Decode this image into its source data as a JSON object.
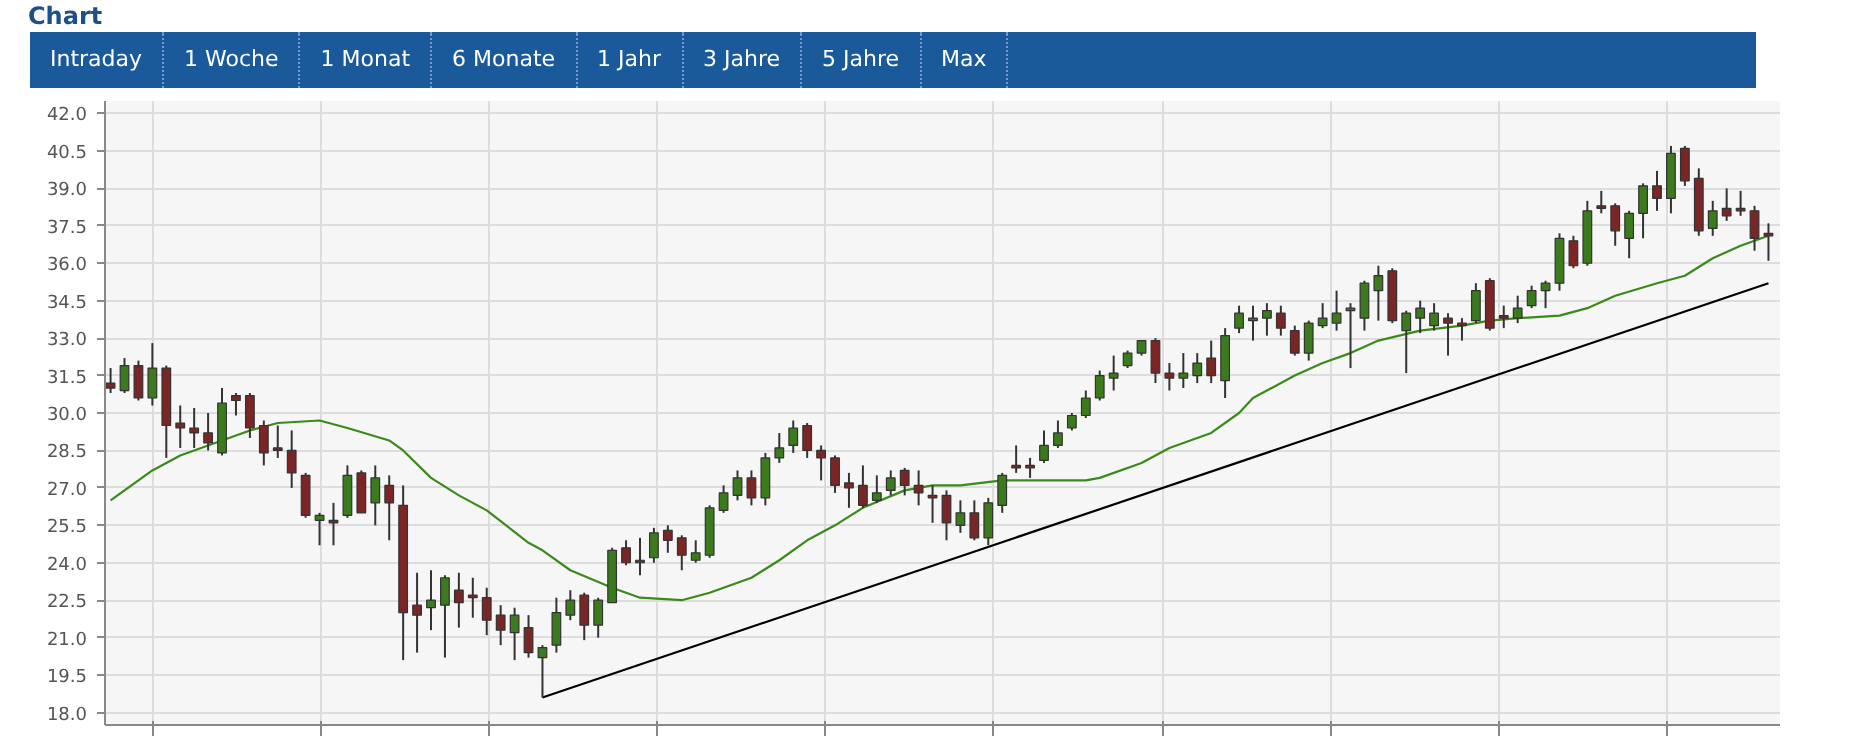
{
  "chart_data": {
    "type": "candlestick",
    "title": "Chart",
    "annotations": [
      "Intraday",
      "1 Woche",
      "1 Monat",
      "6 Monate",
      "1 Jahr",
      "3 Jahre",
      "5 Jahre",
      "Max"
    ],
    "categories": [
      null,
      null,
      null,
      null,
      null,
      null,
      null,
      null,
      null,
      null,
      null,
      null,
      null,
      null,
      null,
      null,
      null,
      null,
      null,
      null,
      null,
      null,
      null,
      null,
      null,
      null,
      null,
      null,
      null,
      null,
      null,
      null,
      null,
      null,
      null,
      null,
      null,
      null,
      null,
      null,
      null,
      null,
      null,
      null,
      null,
      null,
      null,
      null,
      null,
      null,
      null,
      null,
      null,
      null,
      null,
      null,
      null,
      null,
      null,
      null,
      null,
      null,
      null,
      null,
      null,
      null,
      null,
      null,
      null,
      null,
      null,
      null,
      null,
      null,
      null,
      null,
      null,
      null,
      null,
      null,
      null,
      null,
      null,
      null,
      null,
      null,
      null,
      null,
      null,
      null,
      null,
      null,
      null,
      null,
      null,
      null,
      null,
      null,
      null,
      null,
      null,
      null,
      null,
      null,
      null,
      null,
      null,
      null,
      null,
      null,
      null,
      null,
      null,
      null,
      null,
      null,
      null,
      null,
      null,
      null
    ],
    "ohlc": [
      [
        31.2,
        31.8,
        30.8,
        31.0
      ],
      [
        30.9,
        32.2,
        30.8,
        31.9
      ],
      [
        31.9,
        32.1,
        30.5,
        30.6
      ],
      [
        30.6,
        32.8,
        30.3,
        31.8
      ],
      [
        31.8,
        31.9,
        28.2,
        29.5
      ],
      [
        29.6,
        30.3,
        28.6,
        29.4
      ],
      [
        29.4,
        30.2,
        28.6,
        29.2
      ],
      [
        29.2,
        30.0,
        28.5,
        28.8
      ],
      [
        28.4,
        31.0,
        28.3,
        30.4
      ],
      [
        30.7,
        30.8,
        29.9,
        30.5
      ],
      [
        30.7,
        30.8,
        29.0,
        29.4
      ],
      [
        29.5,
        29.7,
        27.9,
        28.4
      ],
      [
        28.6,
        29.5,
        28.2,
        28.5
      ],
      [
        28.5,
        29.3,
        27.0,
        27.6
      ],
      [
        27.5,
        27.6,
        25.8,
        25.9
      ],
      [
        25.7,
        26.0,
        24.7,
        25.9
      ],
      [
        25.7,
        26.4,
        24.7,
        25.6
      ],
      [
        25.9,
        27.9,
        25.8,
        27.5
      ],
      [
        27.6,
        27.7,
        26.0,
        26.0
      ],
      [
        26.4,
        27.9,
        25.5,
        27.4
      ],
      [
        27.1,
        27.5,
        24.9,
        26.4
      ],
      [
        26.3,
        27.1,
        20.1,
        22.0
      ],
      [
        22.3,
        23.6,
        20.4,
        21.9
      ],
      [
        22.2,
        23.7,
        21.3,
        22.5
      ],
      [
        22.3,
        23.5,
        20.2,
        23.4
      ],
      [
        22.9,
        23.6,
        21.4,
        22.4
      ],
      [
        22.7,
        23.4,
        21.8,
        22.6
      ],
      [
        22.6,
        23.0,
        21.1,
        21.7
      ],
      [
        21.9,
        22.3,
        20.7,
        21.3
      ],
      [
        21.2,
        22.2,
        20.1,
        21.9
      ],
      [
        21.4,
        21.9,
        20.2,
        20.4
      ],
      [
        20.2,
        20.7,
        18.6,
        20.6
      ],
      [
        20.7,
        22.6,
        20.4,
        22.0
      ],
      [
        21.9,
        22.9,
        21.7,
        22.5
      ],
      [
        22.7,
        22.8,
        20.9,
        21.5
      ],
      [
        21.5,
        22.6,
        21.0,
        22.5
      ],
      [
        22.4,
        24.6,
        22.4,
        24.5
      ],
      [
        24.6,
        24.9,
        23.9,
        24.0
      ],
      [
        24.1,
        25.0,
        23.5,
        24.0
      ],
      [
        24.2,
        25.4,
        24.0,
        25.2
      ],
      [
        25.3,
        25.5,
        24.4,
        24.9
      ],
      [
        25.0,
        25.1,
        23.7,
        24.3
      ],
      [
        24.1,
        24.9,
        24.0,
        24.4
      ],
      [
        24.3,
        26.3,
        24.2,
        26.2
      ],
      [
        26.1,
        27.1,
        26.0,
        26.8
      ],
      [
        26.7,
        27.7,
        26.5,
        27.4
      ],
      [
        27.4,
        27.7,
        26.3,
        26.6
      ],
      [
        26.6,
        28.4,
        26.3,
        28.2
      ],
      [
        28.2,
        29.2,
        28.0,
        28.6
      ],
      [
        28.7,
        29.7,
        28.4,
        29.4
      ],
      [
        29.5,
        29.6,
        28.2,
        28.5
      ],
      [
        28.5,
        28.7,
        27.3,
        28.2
      ],
      [
        28.2,
        28.3,
        26.8,
        27.1
      ],
      [
        27.2,
        27.6,
        26.2,
        27.0
      ],
      [
        27.1,
        27.9,
        26.2,
        26.3
      ],
      [
        26.5,
        27.5,
        26.4,
        26.8
      ],
      [
        26.9,
        27.7,
        26.7,
        27.4
      ],
      [
        27.7,
        27.8,
        26.7,
        27.1
      ],
      [
        27.1,
        27.7,
        26.3,
        26.8
      ],
      [
        26.7,
        27.1,
        25.6,
        26.6
      ],
      [
        26.7,
        26.9,
        24.9,
        25.6
      ],
      [
        25.5,
        26.5,
        25.2,
        26.0
      ],
      [
        26.0,
        26.5,
        24.9,
        25.0
      ],
      [
        25.0,
        26.6,
        24.7,
        26.4
      ],
      [
        26.3,
        27.6,
        26.0,
        27.5
      ],
      [
        27.9,
        28.7,
        27.6,
        27.8
      ],
      [
        27.9,
        28.2,
        27.4,
        27.8
      ],
      [
        28.1,
        29.3,
        28.0,
        28.7
      ],
      [
        28.7,
        29.7,
        28.6,
        29.2
      ],
      [
        29.4,
        30.0,
        29.3,
        29.9
      ],
      [
        29.9,
        30.9,
        29.8,
        30.6
      ],
      [
        30.6,
        31.7,
        30.5,
        31.5
      ],
      [
        31.4,
        32.3,
        30.9,
        31.6
      ],
      [
        31.9,
        32.5,
        31.8,
        32.4
      ],
      [
        32.4,
        32.9,
        32.3,
        32.9
      ],
      [
        32.9,
        33.0,
        31.2,
        31.6
      ],
      [
        31.6,
        32.0,
        30.9,
        31.4
      ],
      [
        31.4,
        32.4,
        31.0,
        31.6
      ],
      [
        31.5,
        32.4,
        31.2,
        32.0
      ],
      [
        32.2,
        32.9,
        31.2,
        31.5
      ],
      [
        31.3,
        33.4,
        30.6,
        33.1
      ],
      [
        33.4,
        34.3,
        33.2,
        34.0
      ],
      [
        33.7,
        34.3,
        32.9,
        33.8
      ],
      [
        33.8,
        34.4,
        33.1,
        34.1
      ],
      [
        34.0,
        34.3,
        33.1,
        33.4
      ],
      [
        33.3,
        33.5,
        32.3,
        32.4
      ],
      [
        32.4,
        33.7,
        32.1,
        33.6
      ],
      [
        33.5,
        34.4,
        33.4,
        33.8
      ],
      [
        33.6,
        34.9,
        33.3,
        34.0
      ],
      [
        34.1,
        34.4,
        31.8,
        34.2
      ],
      [
        33.8,
        35.3,
        33.3,
        35.2
      ],
      [
        34.9,
        35.9,
        33.7,
        35.5
      ],
      [
        35.7,
        35.8,
        33.6,
        33.7
      ],
      [
        33.3,
        34.1,
        31.6,
        34.0
      ],
      [
        33.8,
        34.5,
        33.2,
        34.2
      ],
      [
        33.5,
        34.4,
        33.3,
        34.0
      ],
      [
        33.8,
        34.0,
        32.3,
        33.6
      ],
      [
        33.6,
        33.8,
        32.9,
        33.5
      ],
      [
        33.7,
        35.2,
        33.6,
        34.9
      ],
      [
        35.3,
        35.4,
        33.3,
        33.4
      ],
      [
        33.9,
        34.3,
        33.4,
        33.8
      ],
      [
        33.8,
        34.7,
        33.6,
        34.2
      ],
      [
        34.3,
        35.1,
        34.2,
        34.9
      ],
      [
        34.9,
        35.3,
        34.2,
        35.2
      ],
      [
        35.2,
        37.2,
        34.9,
        37.0
      ],
      [
        36.9,
        37.1,
        35.8,
        35.9
      ],
      [
        36.0,
        38.5,
        35.9,
        38.1
      ],
      [
        38.3,
        38.9,
        38.0,
        38.2
      ],
      [
        38.3,
        38.4,
        36.7,
        37.3
      ],
      [
        37.0,
        38.1,
        36.2,
        38.0
      ],
      [
        38.0,
        39.2,
        37.0,
        39.1
      ],
      [
        39.1,
        39.7,
        38.1,
        38.6
      ],
      [
        38.6,
        40.7,
        38.0,
        40.4
      ],
      [
        40.6,
        40.7,
        39.1,
        39.3
      ],
      [
        39.4,
        39.8,
        37.1,
        37.3
      ],
      [
        37.4,
        38.5,
        37.1,
        38.1
      ],
      [
        38.2,
        39.0,
        37.7,
        37.9
      ],
      [
        38.2,
        38.9,
        37.9,
        38.1
      ],
      [
        38.1,
        38.3,
        36.5,
        37.0
      ],
      [
        37.2,
        37.6,
        36.1,
        37.1
      ]
    ],
    "colors": [
      "#7a2626",
      "#3c7a1e",
      "#7a2626",
      "#3c7a1e",
      "#7a2626",
      "#7a2626",
      "#7a2626",
      "#7a2626",
      "#3c7a1e",
      "#7a2626",
      "#7a2626",
      "#7a2626",
      "#7a2626",
      "#7a2626",
      "#7a2626",
      "#3c7a1e",
      "#7a2626",
      "#3c7a1e",
      "#7a2626",
      "#3c7a1e",
      "#7a2626",
      "#7a2626",
      "#7a2626",
      "#3c7a1e",
      "#3c7a1e",
      "#7a2626",
      "#7a2626",
      "#7a2626",
      "#7a2626",
      "#3c7a1e",
      "#7a2626",
      "#3c7a1e",
      "#3c7a1e",
      "#3c7a1e",
      "#7a2626",
      "#3c7a1e",
      "#3c7a1e",
      "#7a2626",
      "#7a2626",
      "#3c7a1e",
      "#7a2626",
      "#7a2626",
      "#3c7a1e",
      "#3c7a1e",
      "#3c7a1e",
      "#3c7a1e",
      "#7a2626",
      "#3c7a1e",
      "#3c7a1e",
      "#3c7a1e",
      "#7a2626",
      "#7a2626",
      "#7a2626",
      "#7a2626",
      "#7a2626",
      "#3c7a1e",
      "#3c7a1e",
      "#7a2626",
      "#7a2626",
      "#7a2626",
      "#7a2626",
      "#3c7a1e",
      "#7a2626",
      "#3c7a1e",
      "#3c7a1e",
      "#7a2626",
      "#7a2626",
      "#3c7a1e",
      "#3c7a1e",
      "#3c7a1e",
      "#3c7a1e",
      "#3c7a1e",
      "#3c7a1e",
      "#3c7a1e",
      "#3c7a1e",
      "#7a2626",
      "#7a2626",
      "#3c7a1e",
      "#3c7a1e",
      "#7a2626",
      "#3c7a1e",
      "#3c7a1e",
      "#3c7a1e",
      "#3c7a1e",
      "#7a2626",
      "#7a2626",
      "#3c7a1e",
      "#3c7a1e",
      "#3c7a1e",
      "#3c7a1e",
      "#3c7a1e",
      "#3c7a1e",
      "#7a2626",
      "#3c7a1e",
      "#3c7a1e",
      "#3c7a1e",
      "#7a2626",
      "#7a2626",
      "#3c7a1e",
      "#7a2626",
      "#7a2626",
      "#3c7a1e",
      "#3c7a1e",
      "#3c7a1e",
      "#3c7a1e",
      "#7a2626",
      "#3c7a1e",
      "#7a2626",
      "#7a2626",
      "#3c7a1e",
      "#3c7a1e",
      "#7a2626",
      "#3c7a1e",
      "#7a2626",
      "#7a2626",
      "#3c7a1e",
      "#7a2626",
      "#7a2626",
      "#7a2626",
      "#7a2626"
    ],
    "series": [
      {
        "type": "line",
        "color": "#3a8a1a",
        "values": [
          26.5,
          null,
          null,
          27.7,
          null,
          28.3,
          null,
          null,
          28.9,
          null,
          29.3,
          null,
          29.6,
          null,
          null,
          29.7,
          null,
          29.4,
          null,
          null,
          28.9,
          28.5,
          null,
          27.4,
          null,
          26.7,
          null,
          26.1,
          null,
          null,
          24.8,
          24.5,
          null,
          23.7,
          null,
          null,
          23.0,
          null,
          22.6,
          null,
          null,
          22.5,
          null,
          22.8,
          null,
          null,
          23.4,
          null,
          24.1,
          null,
          24.9,
          null,
          25.5,
          null,
          26.2,
          null,
          null,
          26.9,
          null,
          27.1,
          null,
          27.1,
          null,
          null,
          27.3,
          null,
          null,
          null,
          null,
          null,
          27.3,
          27.4,
          null,
          null,
          28.0,
          null,
          28.6,
          null,
          null,
          29.2,
          null,
          30.0,
          30.6,
          null,
          null,
          31.5,
          null,
          32.0,
          null,
          32.4,
          null,
          32.9,
          null,
          null,
          33.3,
          null,
          null,
          33.5,
          null,
          33.7,
          null,
          33.8,
          null,
          null,
          33.9,
          null,
          34.2,
          null,
          34.7,
          null,
          null,
          35.2,
          null,
          35.5,
          null,
          36.2,
          null,
          36.7,
          null,
          37.1
        ]
      },
      {
        "type": "line",
        "color": "#000000",
        "values": [
          null,
          null,
          null,
          null,
          null,
          null,
          null,
          null,
          null,
          null,
          null,
          null,
          null,
          null,
          null,
          null,
          null,
          null,
          null,
          null,
          null,
          null,
          null,
          null,
          null,
          null,
          null,
          null,
          null,
          null,
          null,
          18.6,
          null,
          null,
          null,
          null,
          null,
          null,
          null,
          null,
          null,
          null,
          null,
          null,
          null,
          null,
          null,
          null,
          null,
          null,
          null,
          null,
          null,
          null,
          null,
          null,
          null,
          null,
          null,
          null,
          null,
          null,
          null,
          null,
          null,
          null,
          null,
          null,
          null,
          null,
          null,
          null,
          null,
          null,
          null,
          null,
          null,
          null,
          null,
          null,
          null,
          null,
          null,
          null,
          null,
          null,
          null,
          null,
          null,
          null,
          null,
          null,
          null,
          null,
          null,
          null,
          null,
          null,
          null,
          null,
          null,
          null,
          null,
          null,
          null,
          null,
          null,
          null,
          null,
          null,
          null,
          null,
          null,
          null,
          null,
          null,
          null,
          null,
          null,
          35.2
        ]
      }
    ],
    "ylim": [
      17.5,
      42.5
    ],
    "yticks": [
      {
        "value": 18,
        "label": "18.0"
      },
      {
        "value": 19.5,
        "label": "19.5"
      },
      {
        "value": 21,
        "label": "21.0"
      },
      {
        "value": 22.5,
        "label": "22.5"
      },
      {
        "value": 24,
        "label": "24.0"
      },
      {
        "value": 25.5,
        "label": "25.5"
      },
      {
        "value": 27,
        "label": "27.0"
      },
      {
        "value": 28.5,
        "label": "28.5"
      },
      {
        "value": 30,
        "label": "30.0"
      },
      {
        "value": 31.5,
        "label": "31.5"
      },
      {
        "value": 33,
        "label": "33.0"
      },
      {
        "value": 34.5,
        "label": "34.5"
      },
      {
        "value": 36,
        "label": "36.0"
      },
      {
        "value": 37.5,
        "label": "37.5"
      },
      {
        "value": 39,
        "label": "39.0"
      },
      {
        "value": 40.5,
        "label": "40.5"
      },
      {
        "value": 42,
        "label": "42.0"
      }
    ],
    "tick_labels": "y",
    "grid": true,
    "marker": "none",
    "line_style": "solid"
  }
}
